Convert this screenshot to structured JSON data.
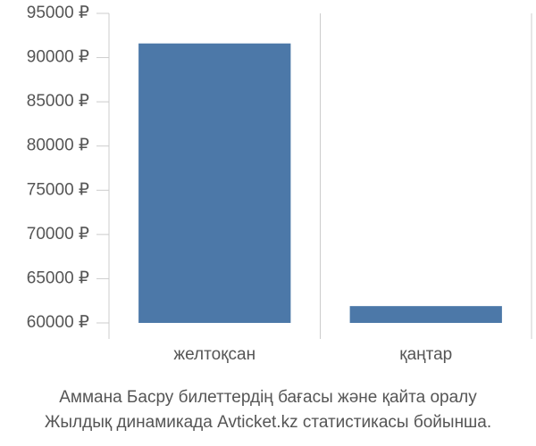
{
  "chart_data": {
    "type": "bar",
    "title": [
      "Аммана Басру билеттердің бағасы және қайта оралу",
      "Жылдық динамикада Avticket.kz статистикасы бойынша."
    ],
    "categories": [
      "желтоқсан",
      "қаңтар"
    ],
    "values": [
      91600,
      61900
    ],
    "color": "#4c78a8",
    "ylim": [
      60000,
      95000
    ],
    "yticks": [
      {
        "value": 60000,
        "label": "60000 ₽"
      },
      {
        "value": 65000,
        "label": "65000 ₽"
      },
      {
        "value": 70000,
        "label": "70000 ₽"
      },
      {
        "value": 75000,
        "label": "75000 ₽"
      },
      {
        "value": 80000,
        "label": "80000 ₽"
      },
      {
        "value": 85000,
        "label": "85000 ₽"
      },
      {
        "value": 90000,
        "label": "90000 ₽"
      },
      {
        "value": 95000,
        "label": "95000 ₽"
      }
    ],
    "grid": true
  }
}
